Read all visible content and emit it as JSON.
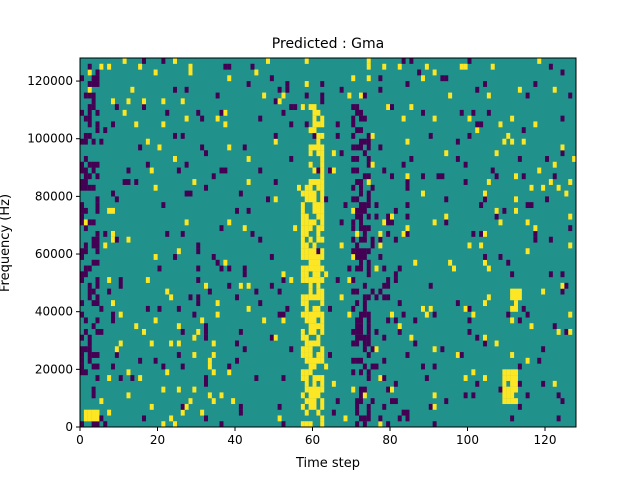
{
  "chart_data": {
    "type": "heatmap",
    "title": "Predicted : Gma",
    "xlabel": "Time step",
    "ylabel": "Frequency (Hz)",
    "xlim": [
      0,
      128
    ],
    "ylim": [
      0,
      128000
    ],
    "x_ticks": [
      0,
      20,
      40,
      60,
      80,
      100,
      120
    ],
    "y_ticks": [
      0,
      20000,
      40000,
      60000,
      80000,
      100000,
      120000
    ],
    "x_tick_labels": [
      "0",
      "20",
      "40",
      "60",
      "80",
      "100",
      "120"
    ],
    "y_tick_labels": [
      "0",
      "20000",
      "40000",
      "60000",
      "80000",
      "100000",
      "120000"
    ],
    "time_steps": 128,
    "frequency_bins": 64,
    "value_levels": [
      -1,
      0,
      1
    ],
    "colormap": [
      "#440154",
      "#21918c",
      "#fde725"
    ],
    "background_level": 0,
    "grid": false,
    "clusters": [
      {
        "t": [
          57,
          62
        ],
        "f": [
          0,
          84000
        ],
        "level": 1,
        "density": 0.65
      },
      {
        "t": [
          59,
          62
        ],
        "f": [
          84000,
          112000
        ],
        "level": 1,
        "density": 0.45
      },
      {
        "t": [
          70,
          74
        ],
        "f": [
          0,
          112000
        ],
        "level": -1,
        "density": 0.45
      },
      {
        "t": [
          109,
          112
        ],
        "f": [
          8000,
          20000
        ],
        "level": 1,
        "density": 0.85
      },
      {
        "t": [
          111,
          113
        ],
        "f": [
          40000,
          48000
        ],
        "level": 1,
        "density": 0.7
      },
      {
        "t": [
          0,
          4
        ],
        "f": [
          0,
          128000
        ],
        "level": -1,
        "density": 0.35
      },
      {
        "t": [
          1,
          4
        ],
        "f": [
          2000,
          6000
        ],
        "level": 1,
        "density": 0.95
      },
      {
        "t": [
          21,
          34
        ],
        "f": [
          0,
          40000
        ],
        "level": 1,
        "density": 0.08
      },
      {
        "t": [
          75,
          84
        ],
        "f": [
          0,
          90000
        ],
        "level": -1,
        "density": 0.1
      }
    ],
    "scatter_density": {
      "yellow": 0.03,
      "purple": 0.04
    }
  }
}
